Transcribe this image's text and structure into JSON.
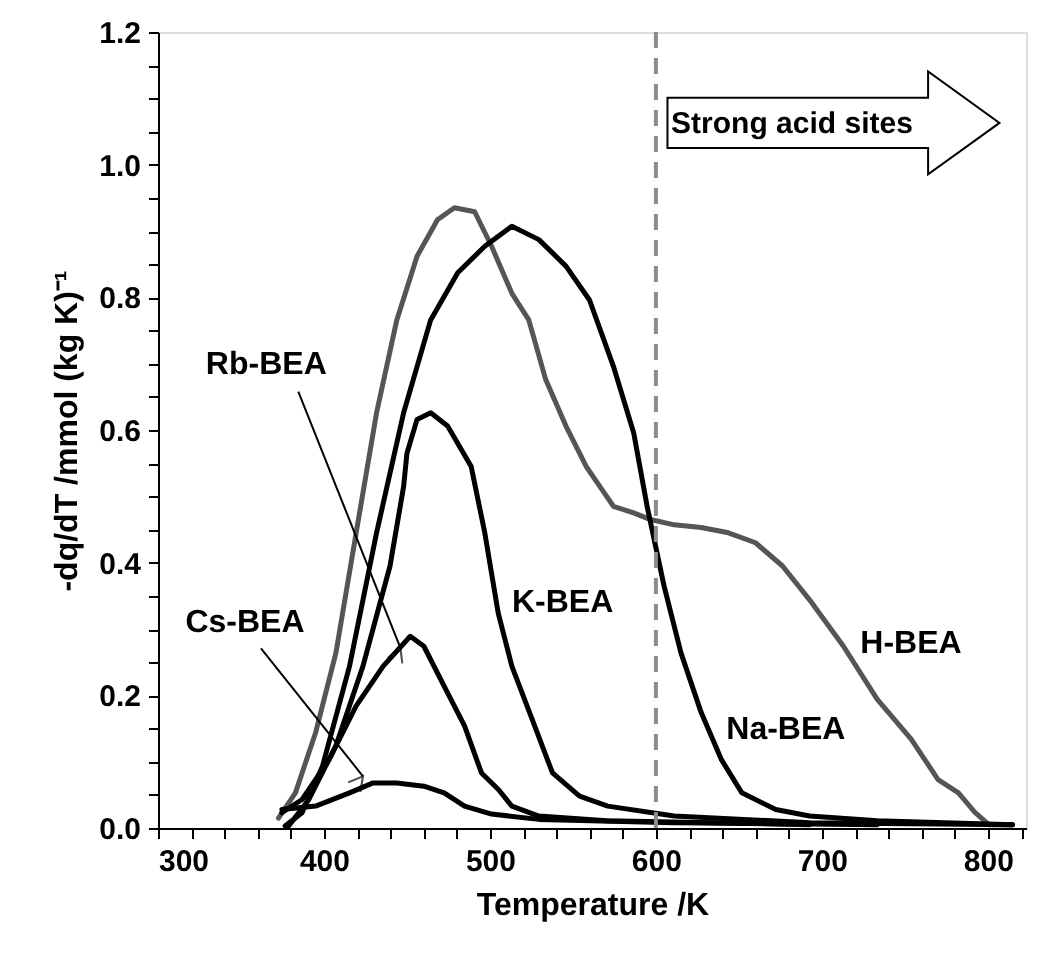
{
  "chart_data": {
    "type": "line",
    "xlabel": "Temperature /K",
    "ylabel": "-dq/dT /mmol (kg K)⁻¹",
    "xlim": [
      300,
      823
    ],
    "ylim": [
      0,
      1.2
    ],
    "xticks": [
      300,
      {
        "value": 320,
        "label": null
      },
      {
        "value": 340,
        "label": null
      },
      {
        "value": 360,
        "label": null
      },
      {
        "value": 380,
        "label": null
      },
      400,
      {
        "value": 420,
        "label": null
      },
      {
        "value": 440,
        "label": null
      },
      {
        "value": 460,
        "label": null
      },
      {
        "value": 480,
        "label": null
      },
      500,
      {
        "value": 520,
        "label": null
      },
      {
        "value": 540,
        "label": null
      },
      {
        "value": 560,
        "label": null
      },
      {
        "value": 580,
        "label": null
      },
      600,
      {
        "value": 620,
        "label": null
      },
      {
        "value": 640,
        "label": null
      },
      {
        "value": 660,
        "label": null
      },
      {
        "value": 680,
        "label": null
      },
      700,
      {
        "value": 720,
        "label": null
      },
      {
        "value": 740,
        "label": null
      },
      {
        "value": 760,
        "label": null
      },
      {
        "value": 780,
        "label": null
      },
      800,
      {
        "value": 820,
        "label": null
      }
    ],
    "yticks": [
      {
        "value": 0,
        "label": "0.0"
      },
      {
        "value": 0.05,
        "label": null
      },
      {
        "value": 0.1,
        "label": null
      },
      {
        "value": 0.15,
        "label": null
      },
      0.2,
      {
        "value": 0.25,
        "label": null
      },
      {
        "value": 0.3,
        "label": null
      },
      {
        "value": 0.35,
        "label": null
      },
      0.4,
      {
        "value": 0.45,
        "label": null
      },
      {
        "value": 0.5,
        "label": null
      },
      {
        "value": 0.55,
        "label": null
      },
      0.6,
      {
        "value": 0.65,
        "label": null
      },
      {
        "value": 0.7,
        "label": null
      },
      {
        "value": 0.75,
        "label": null
      },
      0.8,
      {
        "value": 0.85,
        "label": null
      },
      {
        "value": 0.9,
        "label": null
      },
      {
        "value": 0.95,
        "label": null
      },
      {
        "value": 1.0,
        "label": "1.0"
      },
      {
        "value": 1.05,
        "label": null
      },
      {
        "value": 1.1,
        "label": null
      },
      {
        "value": 1.15,
        "label": null
      },
      1.2
    ],
    "grid": false,
    "marker": "none",
    "line_style": "solid",
    "series": [
      {
        "color": "#555555",
        "x": [
          372.6,
          382.8,
          395,
          407.2,
          419.4,
          431.7,
          443.9,
          456.1,
          468.4,
          478.6,
          490.8,
          501,
          513.2,
          523.4,
          533.6,
          545.8,
          558,
          566.2,
          574.4,
          586.6,
          596.8,
          611,
          627.3,
          643.7,
          660,
          676.3,
          692.6,
          713,
          733.4,
          753.8,
          770,
          782.3,
          792.4,
          800.6,
          814.9
        ],
        "values": [
          0.015,
          0.053,
          0.144,
          0.264,
          0.445,
          0.626,
          0.766,
          0.862,
          0.917,
          0.935,
          0.929,
          0.877,
          0.806,
          0.766,
          0.676,
          0.606,
          0.545,
          0.515,
          0.485,
          0.475,
          0.465,
          0.457,
          0.453,
          0.445,
          0.43,
          0.395,
          0.344,
          0.274,
          0.194,
          0.134,
          0.073,
          0.053,
          0.023,
          0.005,
          0.005
        ]
      },
      {
        "color": "#000000",
        "x": [
          376.6,
          386.8,
          399.1,
          415.4,
          431.7,
          448,
          464.3,
          480.6,
          496.9,
          513.2,
          529.5,
          545.8,
          560,
          574.4,
          586.6,
          594.7,
          604.9,
          615.1,
          627.3,
          639.5,
          651.8,
          672.2,
          692.6,
          733.4,
          814.9
        ],
        "values": [
          0.003,
          0.023,
          0.093,
          0.244,
          0.445,
          0.626,
          0.766,
          0.837,
          0.877,
          0.907,
          0.887,
          0.847,
          0.796,
          0.696,
          0.596,
          0.485,
          0.365,
          0.264,
          0.174,
          0.103,
          0.053,
          0.028,
          0.018,
          0.011,
          0.005
        ]
      },
      {
        "color": "#000000",
        "x": [
          378.7,
          390.9,
          407.2,
          423.5,
          439.8,
          448,
          450,
          456.1,
          464.3,
          474.5,
          488.7,
          496.9,
          505,
          513.2,
          525.4,
          537.7,
          554,
          571,
          611,
          692.6,
          814.9
        ],
        "values": [
          0.003,
          0.043,
          0.124,
          0.244,
          0.395,
          0.515,
          0.565,
          0.616,
          0.626,
          0.606,
          0.545,
          0.445,
          0.324,
          0.244,
          0.164,
          0.083,
          0.048,
          0.033,
          0.018,
          0.008,
          0.005
        ]
      },
      {
        "color": "#000000",
        "x": [
          374.6,
          386.8,
          403.1,
          419.4,
          435.7,
          452,
          460.2,
          472.4,
          484.7,
          494.9,
          505.1,
          513.2,
          529.5,
          570.3,
          692.6
        ],
        "values": [
          0.023,
          0.043,
          0.103,
          0.184,
          0.244,
          0.289,
          0.274,
          0.214,
          0.154,
          0.083,
          0.058,
          0.033,
          0.018,
          0.011,
          0.005
        ]
      },
      {
        "color": "#000000",
        "x": [
          374.6,
          395,
          415.4,
          429.6,
          443.9,
          460.2,
          472.4,
          484.7,
          501,
          529.5,
          611,
          733.4
        ],
        "values": [
          0.028,
          0.033,
          0.053,
          0.068,
          0.068,
          0.063,
          0.053,
          0.033,
          0.021,
          0.013,
          0.008,
          0.005
        ]
      }
    ],
    "ref_lines": [
      {
        "axis": "x",
        "value": 600,
        "color": "#8c8c8c",
        "line_style": "dashed"
      }
    ],
    "annotations": [
      "H-BEA",
      "Na-BEA",
      "K-BEA",
      {
        "text": "Rb-BEA",
        "x": 446,
        "y": 0.272
      },
      {
        "text": "Cs-BEA",
        "x": 423.5,
        "y": 0.078
      },
      "Strong acid sites"
    ]
  }
}
